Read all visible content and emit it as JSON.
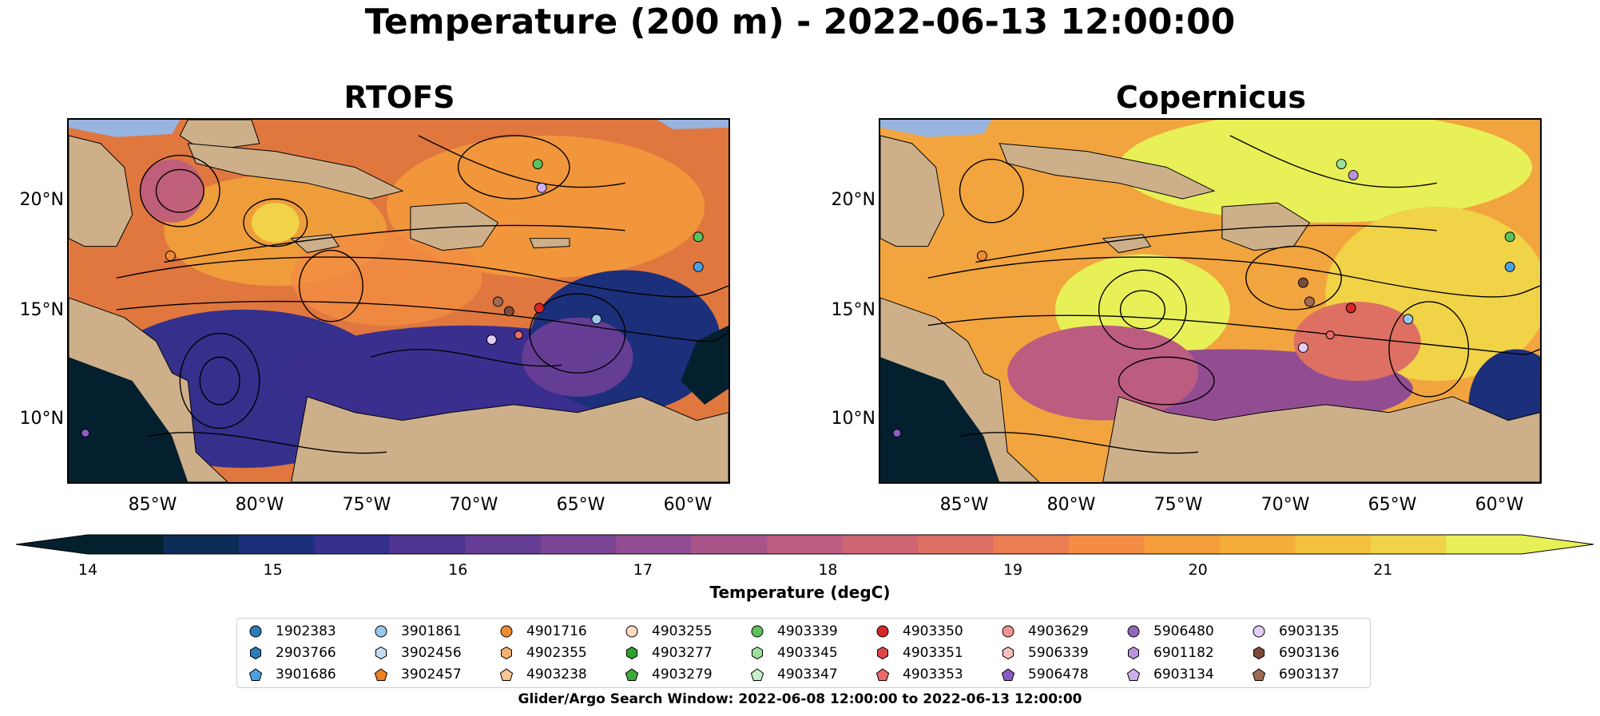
{
  "title": "Temperature (200 m) - 2022-06-13 12:00:00",
  "panels": [
    {
      "title": "RTOFS",
      "palette": "dark"
    },
    {
      "title": "Copernicus",
      "palette": "warm"
    }
  ],
  "axes": {
    "lat_labels": [
      "20°N",
      "15°N",
      "10°N"
    ],
    "lon_labels": [
      "85°W",
      "80°W",
      "75°W",
      "70°W",
      "65°W",
      "60°W"
    ]
  },
  "colorbar": {
    "label": "Temperature (degC)",
    "ticks": [
      "14",
      "15",
      "16",
      "17",
      "18",
      "19",
      "20",
      "21"
    ],
    "min": 14,
    "max": 21.75,
    "extend": "both",
    "colors": [
      "#04202e",
      "#0c2b55",
      "#1c2f7a",
      "#35308c",
      "#4f3592",
      "#663d94",
      "#7b4594",
      "#924d92",
      "#a8548b",
      "#bc5c80",
      "#cd6572",
      "#dd7063",
      "#ea7d52",
      "#f28d43",
      "#f59d3b",
      "#f5ae3a",
      "#f4c040",
      "#f1d348",
      "#e8f057"
    ]
  },
  "legend": {
    "items": [
      {
        "id": "1902383",
        "color": "#2b7bba",
        "marker": "circle"
      },
      {
        "id": "2903766",
        "color": "#2b7bba",
        "marker": "hexagon"
      },
      {
        "id": "3901686",
        "color": "#4aa0e0",
        "marker": "pentagon"
      },
      {
        "id": "3901861",
        "color": "#9ac8ec",
        "marker": "circle"
      },
      {
        "id": "3902456",
        "color": "#c5def5",
        "marker": "hexagon"
      },
      {
        "id": "3902457",
        "color": "#f07f1e",
        "marker": "pentagon"
      },
      {
        "id": "4901716",
        "color": "#f28a34",
        "marker": "circle"
      },
      {
        "id": "4902355",
        "color": "#f6b16f",
        "marker": "hexagon"
      },
      {
        "id": "4903238",
        "color": "#f9c593",
        "marker": "pentagon"
      },
      {
        "id": "4903255",
        "color": "#fcdcc0",
        "marker": "circle"
      },
      {
        "id": "4903277",
        "color": "#2ca02c",
        "marker": "hexagon"
      },
      {
        "id": "4903279",
        "color": "#3daa3d",
        "marker": "pentagon"
      },
      {
        "id": "4903339",
        "color": "#5cc25c",
        "marker": "circle"
      },
      {
        "id": "4903345",
        "color": "#9de09d",
        "marker": "hexagon"
      },
      {
        "id": "4903347",
        "color": "#c8f0c8",
        "marker": "pentagon"
      },
      {
        "id": "4903350",
        "color": "#d62728",
        "marker": "circle"
      },
      {
        "id": "4903351",
        "color": "#e04848",
        "marker": "hexagon"
      },
      {
        "id": "4903353",
        "color": "#ea6a6a",
        "marker": "pentagon"
      },
      {
        "id": "4903629",
        "color": "#f29292",
        "marker": "circle"
      },
      {
        "id": "5906339",
        "color": "#f9c0c0",
        "marker": "hexagon"
      },
      {
        "id": "5906478",
        "color": "#8a5cc4",
        "marker": "pentagon"
      },
      {
        "id": "5906480",
        "color": "#9467bd",
        "marker": "circle"
      },
      {
        "id": "6901182",
        "color": "#b893dc",
        "marker": "hexagon"
      },
      {
        "id": "6903134",
        "color": "#cfb0ee",
        "marker": "pentagon"
      },
      {
        "id": "6903135",
        "color": "#e2cdf8",
        "marker": "circle"
      },
      {
        "id": "6903136",
        "color": "#7b4a3a",
        "marker": "hexagon"
      },
      {
        "id": "6903137",
        "color": "#a06a52",
        "marker": "pentagon"
      }
    ]
  },
  "search_window": "Glider/Argo Search Window: 2022-06-08 12:00:00 to 2022-06-13 12:00:00"
}
